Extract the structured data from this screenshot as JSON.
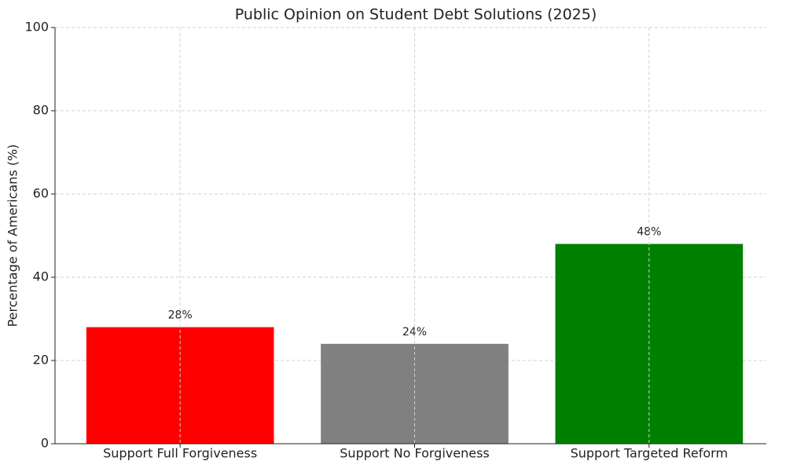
{
  "chart_data": {
    "type": "bar",
    "title": "Public Opinion on Student Debt Solutions (2025)",
    "ylabel": "Percentage of Americans (%)",
    "categories": [
      "Support Full Forgiveness",
      "Support No Forgiveness",
      "Support Targeted Reform"
    ],
    "values": [
      28,
      24,
      48
    ],
    "value_labels": [
      "28%",
      "24%",
      "48%"
    ],
    "colors": [
      "#ff0000",
      "#808080",
      "#008000"
    ],
    "ylim": [
      0,
      100
    ],
    "yticks": [
      0,
      20,
      40,
      60,
      80,
      100
    ],
    "grid": true
  }
}
